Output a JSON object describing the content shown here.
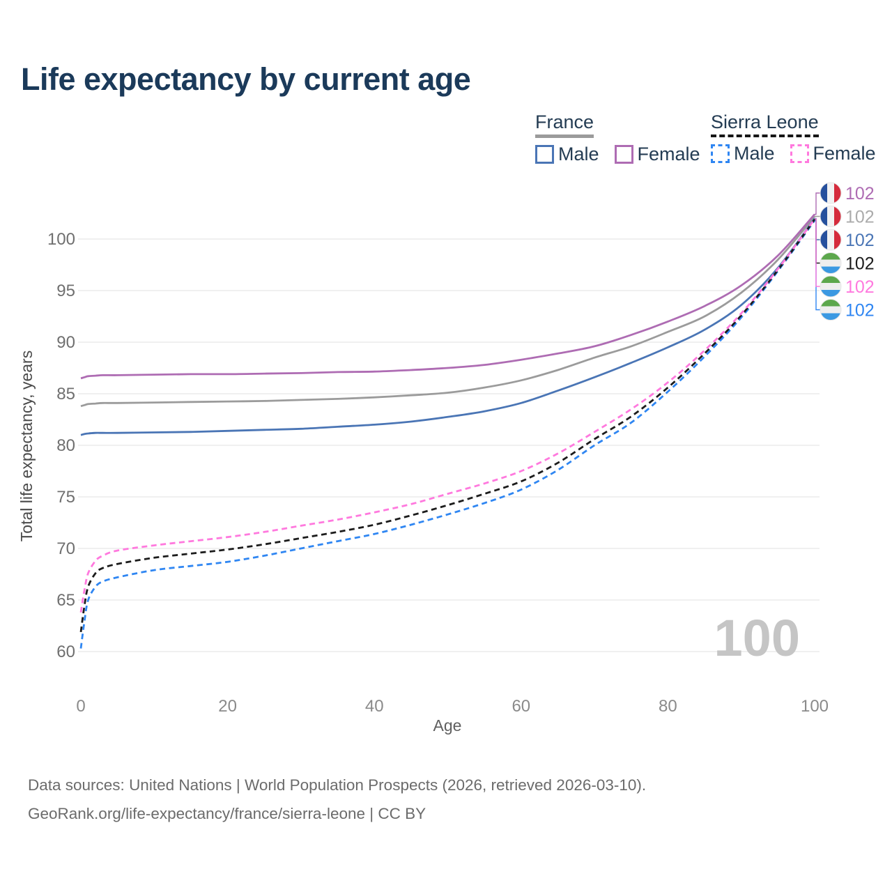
{
  "title": "Life expectancy by current age",
  "watermark": "100",
  "legend": {
    "groups": [
      {
        "id": "france",
        "label": "France",
        "line_style": "solid",
        "line_color": "#9b9b9b",
        "items": [
          {
            "label": "Male",
            "color": "#4a75b5",
            "dash": false
          },
          {
            "label": "Female",
            "color": "#ae6cb3",
            "dash": false
          }
        ]
      },
      {
        "id": "sierra-leone",
        "label": "Sierra Leone",
        "line_style": "dashed",
        "line_color": "#161616",
        "items": [
          {
            "label": "Male",
            "color": "#2f86f2",
            "dash": true
          },
          {
            "label": "Female",
            "color": "#ff79de",
            "dash": true
          }
        ]
      }
    ]
  },
  "footer": {
    "line1": "Data sources: United Nations | World Population Prospects (2026, retrieved 2026-03-10).",
    "line2": "GeoRank.org/life-expectancy/france/sierra-leone | CC BY"
  },
  "flag_colors": {
    "france": [
      "#26509d",
      "#f2f2f2",
      "#d52b3c"
    ],
    "sierra_leone": [
      "#5ca74c",
      "#eeeeee",
      "#3b99e2"
    ]
  },
  "style_colors": {
    "title": "#1b3a5a",
    "grid": "#e8e8e8",
    "y_tick": "#6f6f6f",
    "x_tick": "#8a8a8a",
    "axis_title": "#4a4a4a",
    "watermark": "#c5c5c5",
    "footer": "#6b6b6b"
  },
  "chart_data": {
    "type": "line",
    "title": "Life expectancy by current age",
    "xlabel": "Age",
    "ylabel": "Total life expectancy, years",
    "xlim": [
      0,
      100
    ],
    "ylim": [
      60,
      103
    ],
    "x_ticks": [
      0,
      20,
      40,
      60,
      80,
      100
    ],
    "y_ticks": [
      60,
      65,
      70,
      75,
      80,
      85,
      90,
      95,
      100
    ],
    "grid": "horizontal-only",
    "legend_position": "top-right",
    "x": [
      0,
      0.5,
      1,
      2,
      3,
      5,
      10,
      15,
      20,
      25,
      30,
      35,
      40,
      45,
      50,
      55,
      60,
      65,
      70,
      75,
      80,
      85,
      90,
      95,
      100
    ],
    "series": [
      {
        "id": "france-both",
        "name": "France — Both sexes",
        "country": "France",
        "sex": "Both",
        "color": "#9b9b9b",
        "label_color": "#ababab",
        "dash": "solid",
        "flag": "france",
        "row": 1,
        "end_label": "102",
        "values": [
          83.8,
          83.9,
          84.0,
          84.05,
          84.1,
          84.1,
          84.15,
          84.2,
          84.25,
          84.3,
          84.4,
          84.5,
          84.65,
          84.85,
          85.1,
          85.6,
          86.3,
          87.3,
          88.5,
          89.6,
          91.0,
          92.5,
          94.8,
          98.0,
          102.2
        ]
      },
      {
        "id": "france-female",
        "name": "France — Female",
        "country": "France",
        "sex": "Female",
        "color": "#ae6cb3",
        "label_color": "#ae6cb3",
        "dash": "solid",
        "flag": "france",
        "row": 0,
        "end_label": "102",
        "values": [
          86.5,
          86.6,
          86.7,
          86.75,
          86.8,
          86.8,
          86.85,
          86.9,
          86.9,
          86.95,
          87.0,
          87.1,
          87.15,
          87.3,
          87.5,
          87.8,
          88.3,
          88.9,
          89.6,
          90.7,
          92.0,
          93.5,
          95.5,
          98.4,
          102.4
        ]
      },
      {
        "id": "france-male",
        "name": "France — Male",
        "country": "France",
        "sex": "Male",
        "color": "#4a75b5",
        "label_color": "#4a75b5",
        "dash": "solid",
        "flag": "france",
        "row": 2,
        "end_label": "102",
        "values": [
          81.0,
          81.1,
          81.15,
          81.2,
          81.2,
          81.2,
          81.25,
          81.3,
          81.4,
          81.5,
          81.6,
          81.8,
          82.0,
          82.3,
          82.75,
          83.3,
          84.1,
          85.3,
          86.6,
          88.0,
          89.5,
          91.2,
          93.6,
          97.2,
          102.0
        ]
      },
      {
        "id": "sierra-leone-male",
        "name": "Sierra Leone — Male",
        "country": "Sierra Leone",
        "sex": "Male",
        "color": "#2f86f2",
        "label_color": "#2f86f2",
        "dash": "dashed",
        "flag": "sierra_leone",
        "row": 5,
        "end_label": "102",
        "values": [
          60.3,
          63.0,
          65.0,
          66.3,
          66.8,
          67.2,
          67.9,
          68.3,
          68.7,
          69.3,
          70.0,
          70.7,
          71.4,
          72.3,
          73.3,
          74.4,
          75.7,
          77.6,
          80.0,
          82.2,
          85.2,
          88.6,
          92.4,
          96.9,
          101.8
        ]
      },
      {
        "id": "sierra-leone-both",
        "name": "Sierra Leone — Both sexes",
        "country": "Sierra Leone",
        "sex": "Both",
        "color": "#1c1c1c",
        "label_color": "#1c1c1c",
        "dash": "dashed",
        "flag": "sierra_leone",
        "row": 3,
        "end_label": "102",
        "values": [
          61.9,
          64.5,
          66.3,
          67.6,
          68.1,
          68.5,
          69.1,
          69.5,
          69.9,
          70.4,
          71.0,
          71.6,
          72.3,
          73.2,
          74.2,
          75.3,
          76.5,
          78.3,
          80.6,
          82.8,
          85.6,
          88.9,
          92.6,
          97.0,
          101.9
        ]
      },
      {
        "id": "sierra-leone-female",
        "name": "Sierra Leone — Female",
        "country": "Sierra Leone",
        "sex": "Female",
        "color": "#ff79de",
        "label_color": "#ff79de",
        "dash": "dashed",
        "flag": "sierra_leone",
        "row": 4,
        "end_label": "102",
        "values": [
          63.8,
          66.0,
          67.6,
          68.8,
          69.3,
          69.8,
          70.3,
          70.7,
          71.1,
          71.6,
          72.2,
          72.8,
          73.5,
          74.3,
          75.3,
          76.3,
          77.5,
          79.2,
          81.3,
          83.5,
          86.1,
          89.2,
          92.8,
          97.1,
          101.95
        ]
      }
    ]
  }
}
